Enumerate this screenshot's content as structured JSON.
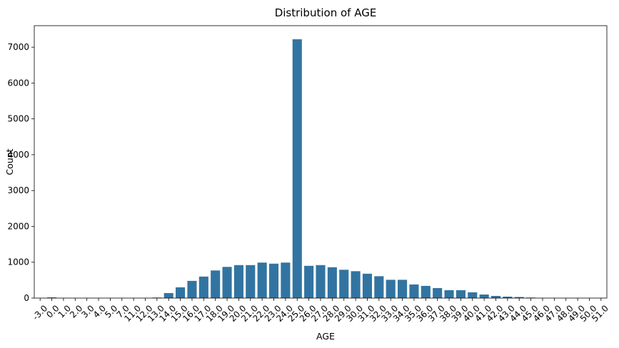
{
  "chart_data": {
    "type": "bar",
    "title": "Distribution of AGE",
    "xlabel": "AGE",
    "ylabel": "Count",
    "ylim": [
      0,
      7600
    ],
    "yticks": [
      0,
      1000,
      2000,
      3000,
      4000,
      5000,
      6000,
      7000
    ],
    "grid": false,
    "bar_color": "#3274a1",
    "categories": [
      "-3.0",
      "0.0",
      "1.0",
      "2.0",
      "3.0",
      "4.0",
      "5.0",
      "7.0",
      "11.0",
      "12.0",
      "13.0",
      "14.0",
      "15.0",
      "16.0",
      "17.0",
      "18.0",
      "19.0",
      "20.0",
      "21.0",
      "22.0",
      "23.0",
      "24.0",
      "25.0",
      "26.0",
      "27.0",
      "28.0",
      "29.0",
      "30.0",
      "31.0",
      "32.0",
      "33.0",
      "34.0",
      "35.0",
      "36.0",
      "37.0",
      "38.0",
      "39.0",
      "40.0",
      "41.0",
      "42.0",
      "43.0",
      "44.0",
      "45.0",
      "46.0",
      "47.0",
      "48.0",
      "49.0",
      "50.0",
      "51.0"
    ],
    "values": [
      2,
      20,
      3,
      2,
      2,
      2,
      2,
      2,
      2,
      3,
      15,
      140,
      300,
      480,
      600,
      770,
      870,
      920,
      920,
      990,
      960,
      990,
      7220,
      900,
      920,
      860,
      790,
      750,
      680,
      610,
      510,
      510,
      380,
      340,
      280,
      220,
      220,
      160,
      100,
      60,
      40,
      30,
      15,
      3,
      2,
      2,
      2,
      2,
      2
    ]
  }
}
